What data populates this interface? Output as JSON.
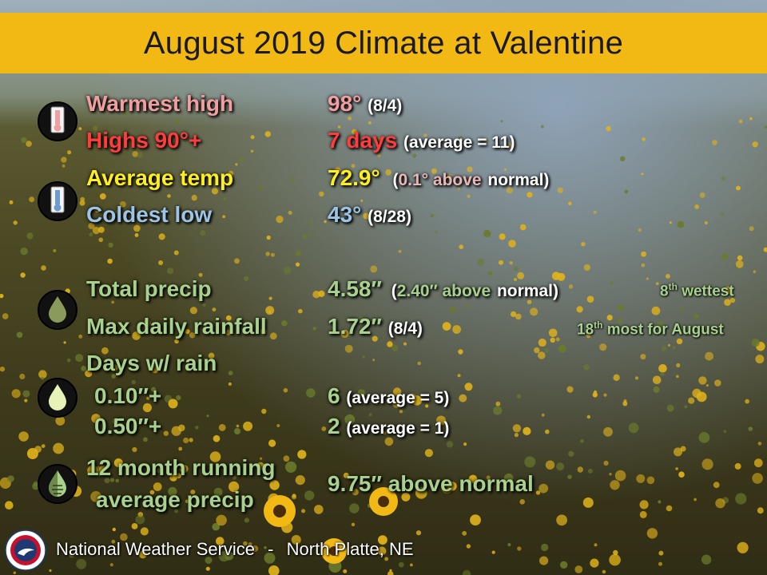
{
  "title": "August 2019 Climate at Valentine",
  "rows": {
    "warmest_high": {
      "label": "Warmest high",
      "value": "98°",
      "detail": "(8/4)"
    },
    "highs_90": {
      "label": "Highs 90°+",
      "value": "7 days",
      "detail": "(average = 11)"
    },
    "average_temp": {
      "label": "Average temp",
      "value": "72.9°",
      "detail_open": "(",
      "detail_mid": "0.1° above",
      "detail_end": "normal)"
    },
    "coldest_low": {
      "label": "Coldest low",
      "value": "43°",
      "detail": "(8/28)"
    },
    "total_precip": {
      "label": "Total precip",
      "value": "4.58″",
      "detail_open": "(",
      "detail_mid": "2.40″ above",
      "detail_end": "normal)",
      "rank_num": "8",
      "rank_sup": "th",
      "rank_text": "wettest"
    },
    "max_daily_rainfall": {
      "label": "Max daily rainfall",
      "value": "1.72″",
      "detail": "(8/4)",
      "rank_num": "18",
      "rank_sup": "th",
      "rank_text": "most for August"
    },
    "days_rain_header": {
      "label": "Days w/ rain"
    },
    "rain_010": {
      "label": "0.10″+",
      "value": "6",
      "detail": "(average = 5)"
    },
    "rain_050": {
      "label": "0.50″+",
      "value": "2",
      "detail": "(average = 1)"
    },
    "running_avg": {
      "label_line1": "12 month running",
      "label_line2": "average precip",
      "value": "9.75″ above normal"
    }
  },
  "footer": {
    "office": "National Weather Service",
    "separator": "-",
    "location": "North Platte, NE"
  },
  "icons": [
    "thermometer-hot-icon",
    "thermometer-cold-icon",
    "raindrop-dark-icon",
    "raindrop-light-icon",
    "raindrop-split-icon",
    "nws-logo-icon"
  ],
  "colors": {
    "title_bar": "#f2b814",
    "warm": "#f19ea1",
    "red": "#ff3d3d",
    "yellow": "#ffef1f",
    "blue": "#9dc3e6",
    "green": "#a9d18e"
  }
}
